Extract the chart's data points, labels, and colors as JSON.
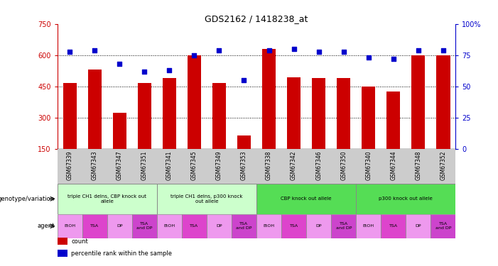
{
  "title": "GDS2162 / 1418238_at",
  "samples": [
    "GSM67339",
    "GSM67343",
    "GSM67347",
    "GSM67351",
    "GSM67341",
    "GSM67345",
    "GSM67349",
    "GSM67353",
    "GSM67338",
    "GSM67342",
    "GSM67346",
    "GSM67350",
    "GSM67340",
    "GSM67344",
    "GSM67348",
    "GSM67352"
  ],
  "counts": [
    465,
    530,
    323,
    465,
    490,
    600,
    465,
    213,
    630,
    495,
    490,
    490,
    450,
    425,
    600,
    600
  ],
  "percentiles": [
    78,
    79,
    68,
    62,
    63,
    75,
    79,
    55,
    79,
    80,
    78,
    78,
    73,
    72,
    79,
    79
  ],
  "ylim_left": [
    150,
    750
  ],
  "ylim_right": [
    0,
    100
  ],
  "yticks_left": [
    150,
    300,
    450,
    600,
    750
  ],
  "yticks_right": [
    0,
    25,
    50,
    75,
    100
  ],
  "bar_color": "#cc0000",
  "dot_color": "#0000cc",
  "genotype_groups": [
    {
      "label": "triple CH1 delns, CBP knock out\nallele",
      "start": 0,
      "end": 4,
      "color": "#ccffcc"
    },
    {
      "label": "triple CH1 delns, p300 knock\nout allele",
      "start": 4,
      "end": 8,
      "color": "#ccffcc"
    },
    {
      "label": "CBP knock out allele",
      "start": 8,
      "end": 12,
      "color": "#66ee66"
    },
    {
      "label": "p300 knock out allele",
      "start": 12,
      "end": 16,
      "color": "#66ee66"
    }
  ],
  "agent_labels": [
    "EtOH",
    "TSA",
    "DP",
    "TSA\nand DP",
    "EtOH",
    "TSA",
    "DP",
    "TSA\nand DP",
    "EtOH",
    "TSA",
    "DP",
    "TSA\nand DP",
    "EtOH",
    "TSA",
    "DP",
    "TSA\nand DP"
  ],
  "agent_colors": [
    "#ee88ee",
    "#dd44dd",
    "#ee88ee",
    "#cc44cc",
    "#ee88ee",
    "#dd44dd",
    "#ee88ee",
    "#cc44cc",
    "#ee88ee",
    "#dd44dd",
    "#ee88ee",
    "#cc44cc",
    "#ee88ee",
    "#dd44dd",
    "#ee88ee",
    "#cc44cc"
  ],
  "sample_area_color": "#cccccc",
  "bg_color": "#ffffff",
  "left_axis_color": "#cc0000",
  "right_axis_color": "#0000cc"
}
